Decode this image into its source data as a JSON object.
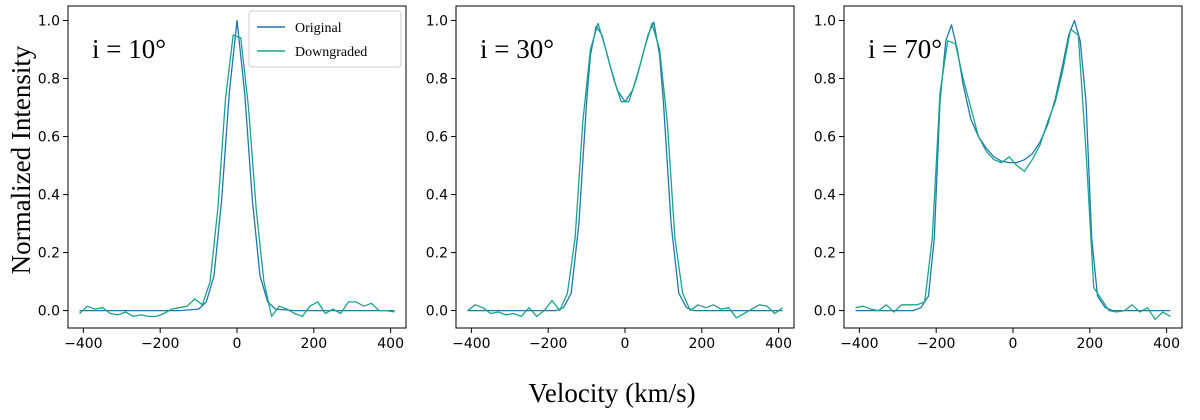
{
  "chart_data": {
    "type": "line",
    "ylabel": "Normalized Intensity",
    "xlabel": "Velocity (km/s)",
    "xlim": [
      -440,
      440
    ],
    "ylim": [
      -0.06,
      1.05
    ],
    "xticks": [
      -400,
      -200,
      0,
      200,
      400
    ],
    "yticks": [
      0.0,
      0.2,
      0.4,
      0.6,
      0.8,
      1.0
    ],
    "xtick_labels": [
      "−400",
      "−200",
      "0",
      "200",
      "400"
    ],
    "ytick_labels": [
      "0.0",
      "0.2",
      "0.4",
      "0.6",
      "0.8",
      "1.0"
    ],
    "colors": {
      "original": "#1f77b4",
      "downgraded": "#17a589"
    },
    "legend": {
      "placement": "top-right",
      "entries": [
        "Original",
        "Downgraded"
      ]
    },
    "panels": [
      {
        "label": "i = 10°",
        "series": [
          {
            "name": "Original",
            "x": [
              -410,
              -150,
              -100,
              -80,
              -60,
              -40,
              -20,
              0,
              20,
              40,
              60,
              80,
              100,
              150,
              410
            ],
            "y": [
              0.0,
              0.0,
              0.005,
              0.03,
              0.12,
              0.38,
              0.75,
              1.0,
              0.75,
              0.38,
              0.12,
              0.03,
              0.005,
              0.0,
              0.0
            ]
          },
          {
            "name": "Downgraded",
            "x": [
              -410,
              -390,
              -370,
              -350,
              -330,
              -310,
              -290,
              -270,
              -250,
              -230,
              -210,
              -190,
              -170,
              -150,
              -130,
              -110,
              -90,
              -70,
              -50,
              -30,
              -10,
              10,
              30,
              50,
              70,
              90,
              110,
              130,
              150,
              170,
              190,
              210,
              230,
              250,
              270,
              290,
              310,
              330,
              350,
              370,
              390,
              410
            ],
            "y": [
              -0.01,
              0.015,
              0.005,
              0.01,
              -0.01,
              -0.015,
              -0.005,
              -0.02,
              -0.015,
              -0.02,
              -0.02,
              -0.01,
              0.005,
              0.01,
              0.015,
              0.04,
              0.02,
              0.1,
              0.35,
              0.73,
              0.95,
              0.94,
              0.7,
              0.35,
              0.1,
              -0.02,
              0.015,
              0.005,
              -0.01,
              -0.02,
              0.015,
              0.03,
              -0.01,
              0.005,
              -0.01,
              0.03,
              0.03,
              0.015,
              0.025,
              0.0,
              0.0,
              -0.005
            ]
          }
        ]
      },
      {
        "label": "i = 30°",
        "series": [
          {
            "name": "Original",
            "x": [
              -410,
              -180,
              -160,
              -140,
              -120,
              -100,
              -90,
              -75,
              -60,
              -40,
              -20,
              0,
              20,
              40,
              60,
              75,
              90,
              100,
              120,
              140,
              160,
              180,
              410
            ],
            "y": [
              0.0,
              0.0,
              0.01,
              0.06,
              0.3,
              0.72,
              0.88,
              0.98,
              0.95,
              0.85,
              0.76,
              0.72,
              0.76,
              0.85,
              0.95,
              0.995,
              0.88,
              0.72,
              0.3,
              0.06,
              0.01,
              0.0,
              0.0
            ]
          },
          {
            "name": "Downgraded",
            "x": [
              -410,
              -390,
              -370,
              -350,
              -330,
              -310,
              -290,
              -270,
              -250,
              -230,
              -210,
              -190,
              -170,
              -150,
              -130,
              -110,
              -90,
              -70,
              -50,
              -30,
              -10,
              10,
              30,
              50,
              70,
              90,
              110,
              130,
              150,
              170,
              190,
              210,
              230,
              250,
              270,
              290,
              310,
              330,
              350,
              370,
              390,
              410
            ],
            "y": [
              0.0,
              0.02,
              0.01,
              -0.01,
              -0.005,
              -0.015,
              -0.01,
              -0.02,
              0.01,
              -0.02,
              0.0,
              0.035,
              0.0,
              0.06,
              0.25,
              0.65,
              0.9,
              0.99,
              0.9,
              0.8,
              0.72,
              0.72,
              0.8,
              0.9,
              0.99,
              0.9,
              0.65,
              0.25,
              0.06,
              0.0,
              0.02,
              0.01,
              0.02,
              0.005,
              0.01,
              -0.025,
              -0.01,
              0.005,
              0.02,
              0.015,
              -0.01,
              0.01
            ]
          }
        ]
      },
      {
        "label": "i = 70°",
        "series": [
          {
            "name": "Original",
            "x": [
              -410,
              -260,
              -240,
              -220,
              -205,
              -190,
              -175,
              -160,
              -145,
              -130,
              -110,
              -90,
              -70,
              -50,
              -30,
              -10,
              0,
              10,
              30,
              50,
              70,
              90,
              110,
              130,
              145,
              160,
              175,
              190,
              205,
              220,
              240,
              260,
              410
            ],
            "y": [
              0.0,
              0.0,
              0.01,
              0.05,
              0.25,
              0.72,
              0.93,
              0.985,
              0.9,
              0.78,
              0.66,
              0.6,
              0.56,
              0.53,
              0.515,
              0.51,
              0.51,
              0.51,
              0.52,
              0.54,
              0.58,
              0.64,
              0.73,
              0.85,
              0.95,
              1.0,
              0.93,
              0.72,
              0.25,
              0.05,
              0.01,
              0.0,
              0.0
            ]
          },
          {
            "name": "Downgraded",
            "x": [
              -410,
              -390,
              -370,
              -350,
              -330,
              -310,
              -290,
              -270,
              -250,
              -230,
              -210,
              -190,
              -170,
              -150,
              -130,
              -110,
              -90,
              -70,
              -50,
              -30,
              -10,
              10,
              30,
              50,
              70,
              90,
              110,
              130,
              150,
              170,
              190,
              210,
              230,
              250,
              270,
              290,
              310,
              330,
              350,
              370,
              390,
              410
            ],
            "y": [
              0.01,
              0.015,
              0.005,
              0.0,
              0.02,
              -0.005,
              0.02,
              0.02,
              0.02,
              0.03,
              0.25,
              0.75,
              0.93,
              0.92,
              0.8,
              0.7,
              0.6,
              0.55,
              0.52,
              0.51,
              0.53,
              0.5,
              0.48,
              0.52,
              0.57,
              0.65,
              0.72,
              0.83,
              0.97,
              0.95,
              0.55,
              0.08,
              0.04,
              0.0,
              -0.005,
              0.0,
              0.02,
              -0.005,
              0.01,
              -0.03,
              -0.005,
              -0.02
            ]
          }
        ]
      }
    ]
  }
}
